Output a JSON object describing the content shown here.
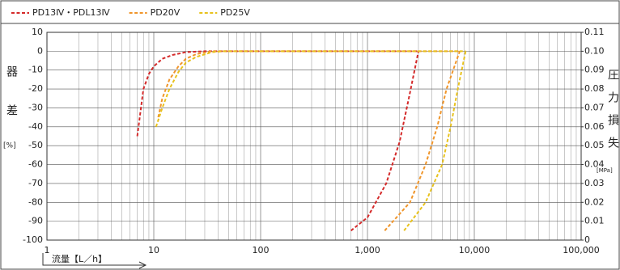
{
  "chart_data": {
    "type": "line",
    "xlabel": "流量【L／h】",
    "ylabel": "器差",
    "yunit": "[%]",
    "y2label": "圧力損失",
    "y2unit": "[MPa]",
    "xscale": "log",
    "xlim": [
      1,
      100000
    ],
    "xticks": [
      1,
      10,
      100,
      {
        "value": 1000,
        "label": "1,000"
      },
      {
        "value": 10000,
        "label": "10,000"
      },
      {
        "value": 100000,
        "label": "100,000"
      }
    ],
    "xminorticks": [
      2,
      3,
      4,
      5,
      6,
      7,
      8,
      9,
      20,
      30,
      40,
      50,
      60,
      70,
      80,
      90,
      200,
      300,
      400,
      500,
      600,
      700,
      800,
      900,
      2000,
      3000,
      4000,
      5000,
      6000,
      7000,
      8000,
      9000,
      20000,
      30000,
      40000,
      50000,
      60000,
      70000,
      80000,
      90000
    ],
    "ylim": [
      -100,
      10
    ],
    "yticks": [
      -100,
      -90,
      -80,
      -70,
      -60,
      -50,
      -40,
      -30,
      -20,
      -10,
      0,
      10
    ],
    "y2lim": [
      0,
      0.11
    ],
    "y2ticks": [
      0,
      0.01,
      0.02,
      0.03,
      0.04,
      0.05,
      0.06,
      0.07,
      0.08,
      0.09,
      {
        "value": 0.1,
        "label": "0.10"
      },
      0.11
    ],
    "grid": true,
    "legend": "top",
    "series": [
      {
        "name": "PD13Ⅳ・PDL13Ⅳ",
        "color": "#d42a2a",
        "accuracy": {
          "x": [
            7,
            8,
            9,
            10,
            12,
            15,
            20,
            30,
            100,
            1000,
            3000
          ],
          "values": [
            -45,
            -20,
            -12,
            -8,
            -4,
            -2,
            -0.5,
            0,
            0,
            0,
            0
          ]
        },
        "pressure_loss": {
          "axis": "y2",
          "x": [
            700,
            1000,
            1500,
            2000,
            2500,
            3000
          ],
          "values": [
            0.005,
            0.012,
            0.03,
            0.052,
            0.078,
            0.1
          ]
        }
      },
      {
        "name": "PD20V",
        "color": "#f0952a",
        "accuracy": {
          "x": [
            11,
            12,
            14,
            17,
            20,
            25,
            35,
            7300
          ],
          "values": [
            -35,
            -25,
            -15,
            -8,
            -4,
            -1.5,
            0,
            0
          ]
        },
        "pressure_loss": {
          "axis": "y2",
          "x": [
            1450,
            2500,
            3500,
            4500,
            5500,
            7300
          ],
          "values": [
            0.005,
            0.02,
            0.04,
            0.06,
            0.08,
            0.1
          ]
        }
      },
      {
        "name": "PD25V",
        "color": "#e8c21e",
        "accuracy": {
          "x": [
            10.5,
            12,
            14,
            17,
            20,
            25,
            35,
            45,
            8300
          ],
          "values": [
            -40,
            -30,
            -20,
            -11,
            -6,
            -3,
            -0.5,
            0,
            0
          ]
        },
        "pressure_loss": {
          "axis": "y2",
          "x": [
            2200,
            3500,
            5000,
            6000,
            7000,
            8300
          ],
          "values": [
            0.005,
            0.02,
            0.04,
            0.06,
            0.08,
            0.1
          ]
        }
      }
    ]
  }
}
